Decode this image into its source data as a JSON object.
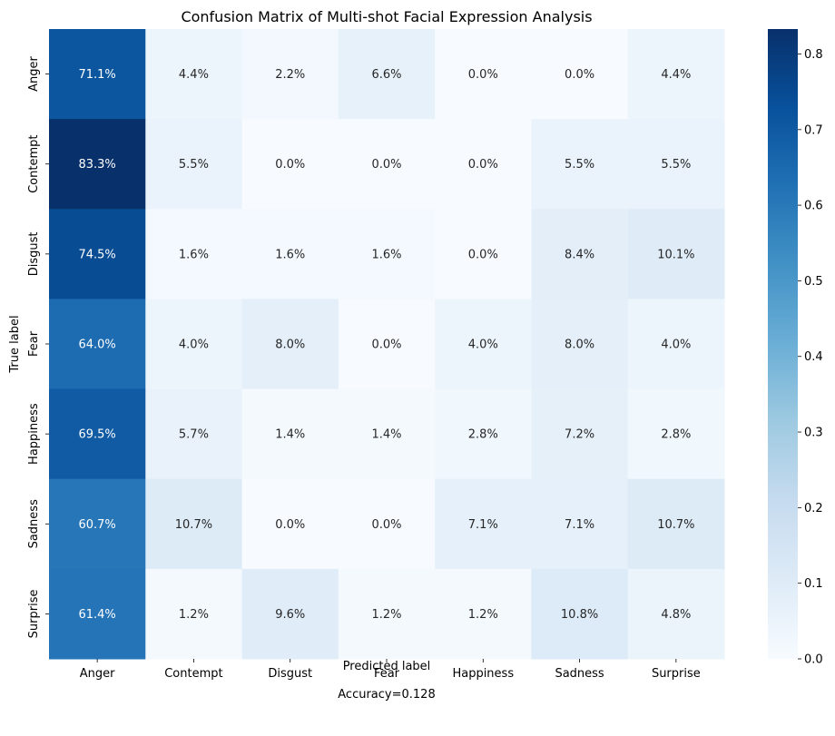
{
  "chart_data": {
    "type": "heatmap",
    "title": "Confusion Matrix of Multi-shot Facial Expression Analysis",
    "xlabel": "Predicted label",
    "ylabel": "True label",
    "footer": "Accuracy=0.128",
    "x_categories": [
      "Anger",
      "Contempt",
      "Disgust",
      "Fear",
      "Happiness",
      "Sadness",
      "Surprise"
    ],
    "y_categories": [
      "Anger",
      "Contempt",
      "Disgust",
      "Fear",
      "Happiness",
      "Sadness",
      "Surprise"
    ],
    "values": [
      [
        0.711,
        0.044,
        0.022,
        0.066,
        0.0,
        0.0,
        0.044
      ],
      [
        0.833,
        0.055,
        0.0,
        0.0,
        0.0,
        0.055,
        0.055
      ],
      [
        0.745,
        0.016,
        0.016,
        0.016,
        0.0,
        0.084,
        0.101
      ],
      [
        0.64,
        0.04,
        0.08,
        0.0,
        0.04,
        0.08,
        0.04
      ],
      [
        0.695,
        0.057,
        0.014,
        0.014,
        0.028,
        0.072,
        0.028
      ],
      [
        0.607,
        0.107,
        0.0,
        0.0,
        0.071,
        0.071,
        0.107
      ],
      [
        0.614,
        0.012,
        0.096,
        0.012,
        0.012,
        0.108,
        0.048
      ]
    ],
    "cell_labels": [
      [
        "71.1%",
        "4.4%",
        "2.2%",
        "6.6%",
        "0.0%",
        "0.0%",
        "4.4%"
      ],
      [
        "83.3%",
        "5.5%",
        "0.0%",
        "0.0%",
        "0.0%",
        "5.5%",
        "5.5%"
      ],
      [
        "74.5%",
        "1.6%",
        "1.6%",
        "1.6%",
        "0.0%",
        "8.4%",
        "10.1%"
      ],
      [
        "64.0%",
        "4.0%",
        "8.0%",
        "0.0%",
        "4.0%",
        "8.0%",
        "4.0%"
      ],
      [
        "69.5%",
        "5.7%",
        "1.4%",
        "1.4%",
        "2.8%",
        "7.2%",
        "2.8%"
      ],
      [
        "60.7%",
        "10.7%",
        "0.0%",
        "0.0%",
        "7.1%",
        "7.1%",
        "10.7%"
      ],
      [
        "61.4%",
        "1.2%",
        "9.6%",
        "1.2%",
        "1.2%",
        "10.8%",
        "4.8%"
      ]
    ],
    "colormap": "Blues",
    "colorbar": {
      "vmin": 0.0,
      "vmax": 0.833,
      "ticks": [
        0.0,
        0.1,
        0.2,
        0.3,
        0.4,
        0.5,
        0.6,
        0.7,
        0.8
      ],
      "tick_labels": [
        "0.0",
        "0.1",
        "0.2",
        "0.3",
        "0.4",
        "0.5",
        "0.6",
        "0.7",
        "0.8"
      ]
    },
    "colors": {
      "blues_stops": [
        "#f7fbff",
        "#deebf7",
        "#c6dbef",
        "#9ecae1",
        "#6baed6",
        "#4292c6",
        "#2171b5",
        "#08519c",
        "#08306b"
      ],
      "text_light": "#ffffff",
      "text_dark": "#262626"
    }
  }
}
